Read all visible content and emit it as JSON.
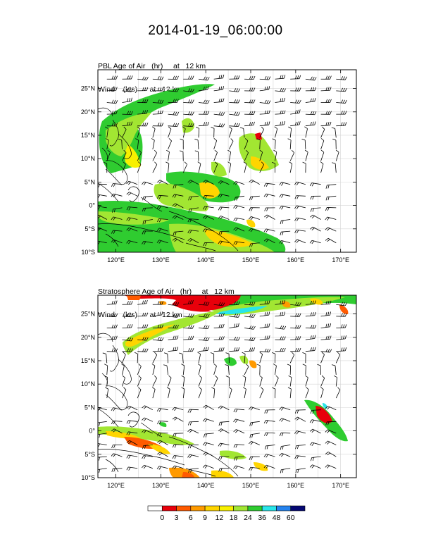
{
  "title": "2014-01-19_06:00:00",
  "panels": [
    {
      "field_line": "PBL Age of Air   (hr)     at   12 km",
      "wind_line": "Wind    (kts)      at   12 km"
    },
    {
      "field_line": "Stratosphere Age of Air   (hr)     at   12 km",
      "wind_line": "Wind    (kts)      at   12 km"
    }
  ],
  "map": {
    "lon_range": [
      116,
      173.5
    ],
    "lat_range": [
      -10,
      29
    ],
    "lon_ticks": [
      "120°E",
      "130°E",
      "140°E",
      "150°E",
      "160°E",
      "170°E"
    ],
    "lat_ticks": [
      "25°N",
      "20°N",
      "15°N",
      "10°N",
      "5°N",
      "0°",
      "5°S",
      "10°S"
    ],
    "grid": true
  },
  "colorbar": {
    "labels": [
      "0",
      "3",
      "6",
      "9",
      "12",
      "18",
      "24",
      "36",
      "48",
      "60"
    ],
    "colors": [
      "#ffffff",
      "#e8000b",
      "#ff5a00",
      "#ff9a00",
      "#ffd500",
      "#f8f000",
      "#a2e632",
      "#2fcc30",
      "#29e5e9",
      "#2583ee",
      "#050873"
    ]
  }
}
